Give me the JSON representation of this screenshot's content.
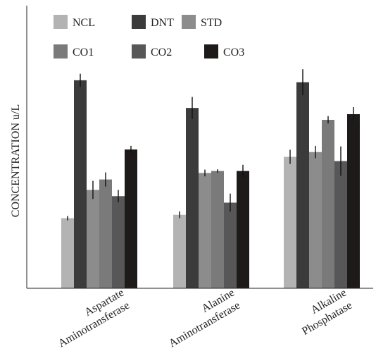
{
  "chart_data": {
    "type": "bar",
    "title": "",
    "xlabel": "",
    "ylabel": "CONCENTRATION u/L",
    "ylim": [
      0,
      100
    ],
    "grid": false,
    "legend_position": "top-left",
    "categories": [
      [
        "Aspartate",
        "Aminotransferase"
      ],
      [
        "Alanine",
        "Aminotransferase"
      ],
      [
        "Alkaline",
        "Phosphatase"
      ]
    ],
    "series": [
      {
        "name": "NCL",
        "color": "#b3b3b3",
        "values": [
          24.8,
          26.0,
          46.5
        ],
        "errors": [
          0.8,
          1.2,
          2.5
        ]
      },
      {
        "name": "DNT",
        "color": "#3b3b3b",
        "values": [
          73.6,
          63.8,
          72.9
        ],
        "errors": [
          2.3,
          3.9,
          4.6
        ]
      },
      {
        "name": "STD",
        "color": "#8c8c8c",
        "values": [
          34.8,
          40.8,
          48.2
        ],
        "errors": [
          3.2,
          1.2,
          2.2
        ]
      },
      {
        "name": "CO1",
        "color": "#7a7a7a",
        "values": [
          38.5,
          41.5,
          59.6
        ],
        "errors": [
          2.5,
          0.6,
          1.3
        ]
      },
      {
        "name": "CO2",
        "color": "#575757",
        "values": [
          32.6,
          30.3,
          45.0
        ],
        "errors": [
          2.2,
          3.2,
          5.2
        ]
      },
      {
        "name": "CO3",
        "color": "#1f1a1a",
        "values": [
          49.1,
          41.5,
          61.6
        ],
        "errors": [
          1.3,
          2.2,
          2.5
        ]
      }
    ]
  }
}
